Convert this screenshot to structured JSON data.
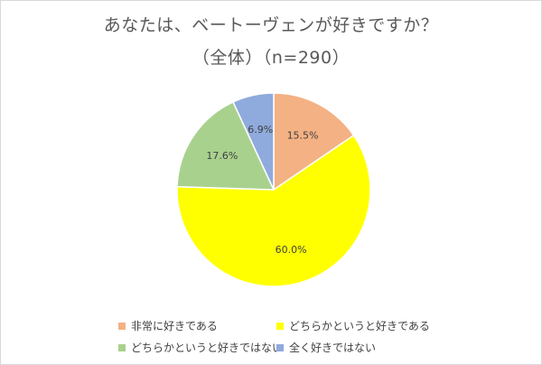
{
  "chart_data": {
    "type": "pie",
    "title": "あなたは、ベートーヴェンが好きですか？",
    "subtitle": "（全体）（n=290）",
    "labels": [
      "非常に好きである",
      "どちらかというと好きである",
      "どちらかというと好きではない",
      "全く好きではない"
    ],
    "values": [
      15.5,
      60.0,
      17.6,
      6.9
    ],
    "value_labels": [
      "15.5%",
      "60.0%",
      "17.6%",
      "6.9%"
    ],
    "colors": [
      "#f4b183",
      "#ffff00",
      "#a9d18e",
      "#8faadc"
    ],
    "start_angle": "12 o'clock",
    "direction": "clockwise",
    "legend": "bottom"
  }
}
